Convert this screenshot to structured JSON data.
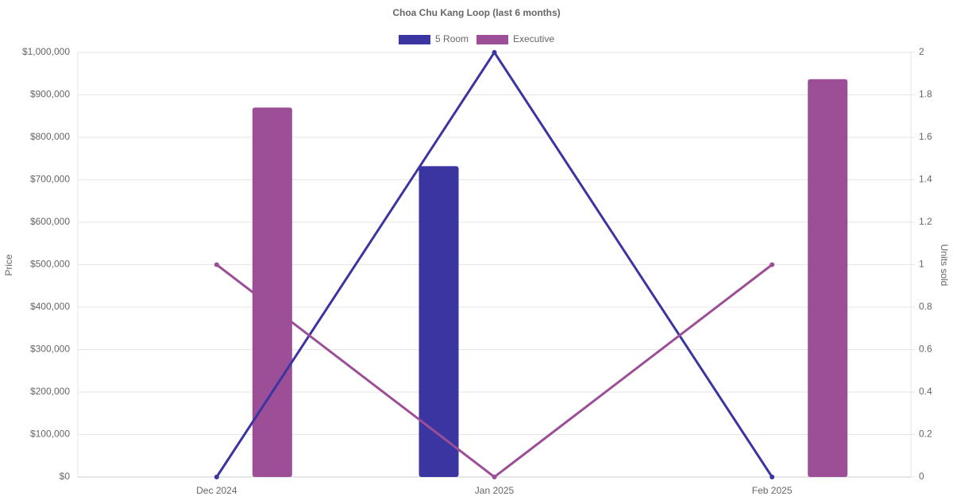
{
  "chart_data": {
    "type": "bar-line",
    "title": "Choa Chu Kang Loop (last 6 months)",
    "y_label": "Price",
    "y2_label": "Units sold",
    "categories": [
      "Dec 2024",
      "Jan 2025",
      "Feb 2025"
    ],
    "series": [
      {
        "name": "5 Room",
        "color": "#3a35a0",
        "values": [
          null,
          732000,
          null
        ],
        "units": [
          0,
          2,
          0
        ]
      },
      {
        "name": "Executive",
        "color": "#9c4f96",
        "values": [
          870000,
          null,
          937000
        ],
        "units": [
          1,
          0,
          1
        ]
      }
    ],
    "ylim": [
      0,
      1000000
    ],
    "yticks": [
      {
        "value": 0,
        "label": "$0"
      },
      {
        "value": 100000,
        "label": "$100,000"
      },
      {
        "value": 200000,
        "label": "$200,000"
      },
      {
        "value": 300000,
        "label": "$300,000"
      },
      {
        "value": 400000,
        "label": "$400,000"
      },
      {
        "value": 500000,
        "label": "$500,000"
      },
      {
        "value": 600000,
        "label": "$600,000"
      },
      {
        "value": 700000,
        "label": "$700,000"
      },
      {
        "value": 800000,
        "label": "$800,000"
      },
      {
        "value": 900000,
        "label": "$900,000"
      },
      {
        "value": 1000000,
        "label": "$1,000,000"
      }
    ],
    "y2lim": [
      0,
      2
    ],
    "y2ticks": [
      0,
      0.2,
      0.4,
      0.6,
      0.8,
      1,
      1.2,
      1.4,
      1.6,
      1.8,
      2
    ],
    "grid": true
  }
}
